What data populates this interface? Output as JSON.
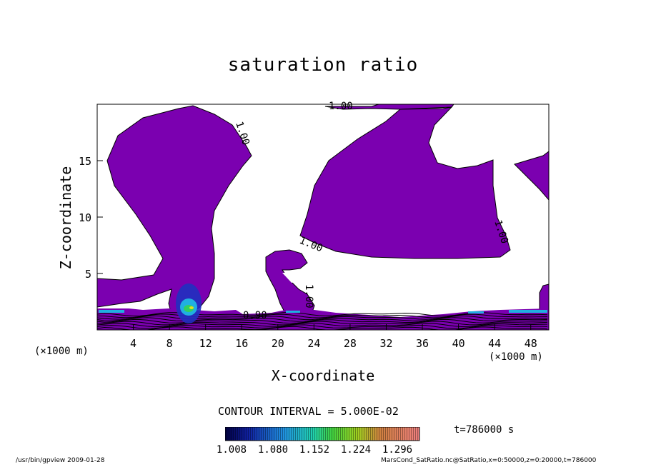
{
  "chart_data": {
    "type": "contour",
    "title": "saturation ratio",
    "xlabel": "X-coordinate",
    "ylabel": "Z-coordinate",
    "x_unit": "(×1000 m)",
    "x_unit_right": "(×1000 m)",
    "xlim": [
      0,
      50
    ],
    "ylim": [
      0,
      20
    ],
    "xticks": [
      4,
      8,
      12,
      16,
      20,
      24,
      28,
      32,
      36,
      40,
      44,
      48
    ],
    "yticks": [
      5,
      10,
      15
    ],
    "contour_labels": [
      "1.00",
      "1.00",
      "1.00",
      "1.00",
      "1.00",
      "0.90"
    ],
    "contour_interval": "CONTOUR INTERVAL = 5.000E-02",
    "time": "t=786000 s",
    "colorbar": {
      "ticks": [
        "1.008",
        "1.080",
        "1.152",
        "1.224",
        "1.296"
      ],
      "min": 1.008,
      "max": 1.296
    },
    "fill_color": "#7b00b0"
  },
  "footer": {
    "left": "/usr/bin/gpview   2009-01-28",
    "right": "MarsCond_SatRatio.nc@SatRatio,x=0:50000,z=0:20000,t=786000"
  }
}
